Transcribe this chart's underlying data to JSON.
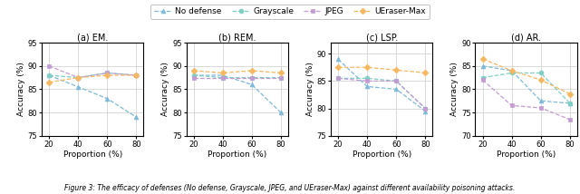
{
  "x": [
    20,
    40,
    60,
    80
  ],
  "subplots": [
    {
      "title": "(a) EM.",
      "ylim": [
        75,
        95
      ],
      "yticks": [
        75,
        80,
        85,
        90,
        95
      ],
      "no_defense": [
        88.0,
        85.5,
        83.0,
        79.0
      ],
      "grayscale": [
        88.0,
        87.5,
        88.5,
        88.0
      ],
      "jpeg": [
        90.0,
        87.5,
        88.5,
        88.0
      ],
      "ueraser_max": [
        86.5,
        87.5,
        88.0,
        88.0
      ]
    },
    {
      "title": "(b) REM.",
      "ylim": [
        75,
        95
      ],
      "yticks": [
        75,
        80,
        85,
        90,
        95
      ],
      "no_defense": [
        88.0,
        88.0,
        86.0,
        80.0
      ],
      "grayscale": [
        88.0,
        87.5,
        87.5,
        87.5
      ],
      "jpeg": [
        87.5,
        87.5,
        87.5,
        87.5
      ],
      "ueraser_max": [
        89.0,
        88.5,
        89.0,
        88.5
      ]
    },
    {
      "title": "(c) LSP.",
      "ylim": [
        75,
        92
      ],
      "yticks": [
        75,
        80,
        85,
        90
      ],
      "no_defense": [
        89.0,
        84.0,
        83.5,
        79.5
      ],
      "grayscale": [
        85.5,
        85.5,
        85.0,
        80.0
      ],
      "jpeg": [
        85.5,
        85.0,
        85.0,
        80.0
      ],
      "ueraser_max": [
        87.5,
        87.5,
        87.0,
        86.5
      ]
    },
    {
      "title": "(d) AR.",
      "ylim": [
        70,
        90
      ],
      "yticks": [
        70,
        75,
        80,
        85,
        90
      ],
      "no_defense": [
        85.0,
        84.0,
        77.5,
        77.0
      ],
      "grayscale": [
        82.5,
        83.5,
        83.5,
        77.0
      ],
      "jpeg": [
        82.0,
        76.5,
        76.0,
        73.5
      ],
      "ueraser_max": [
        86.5,
        84.0,
        82.0,
        79.0
      ]
    }
  ],
  "colors": {
    "no_defense": "#7fb9d9",
    "grayscale": "#7ecec4",
    "jpeg": "#c39bd3",
    "ueraser_max": "#f5b862"
  },
  "legend_labels": [
    "No defense",
    "Grayscale",
    "JPEG",
    "UEraser-Max"
  ],
  "xlabel": "Proportion (%)",
  "ylabel": "Accuracy (%)",
  "caption": "Figure 3: The efficacy of defenses (No defense, Grayscale, JPEG, and UEraser-Max) against different availability poisoning attacks."
}
